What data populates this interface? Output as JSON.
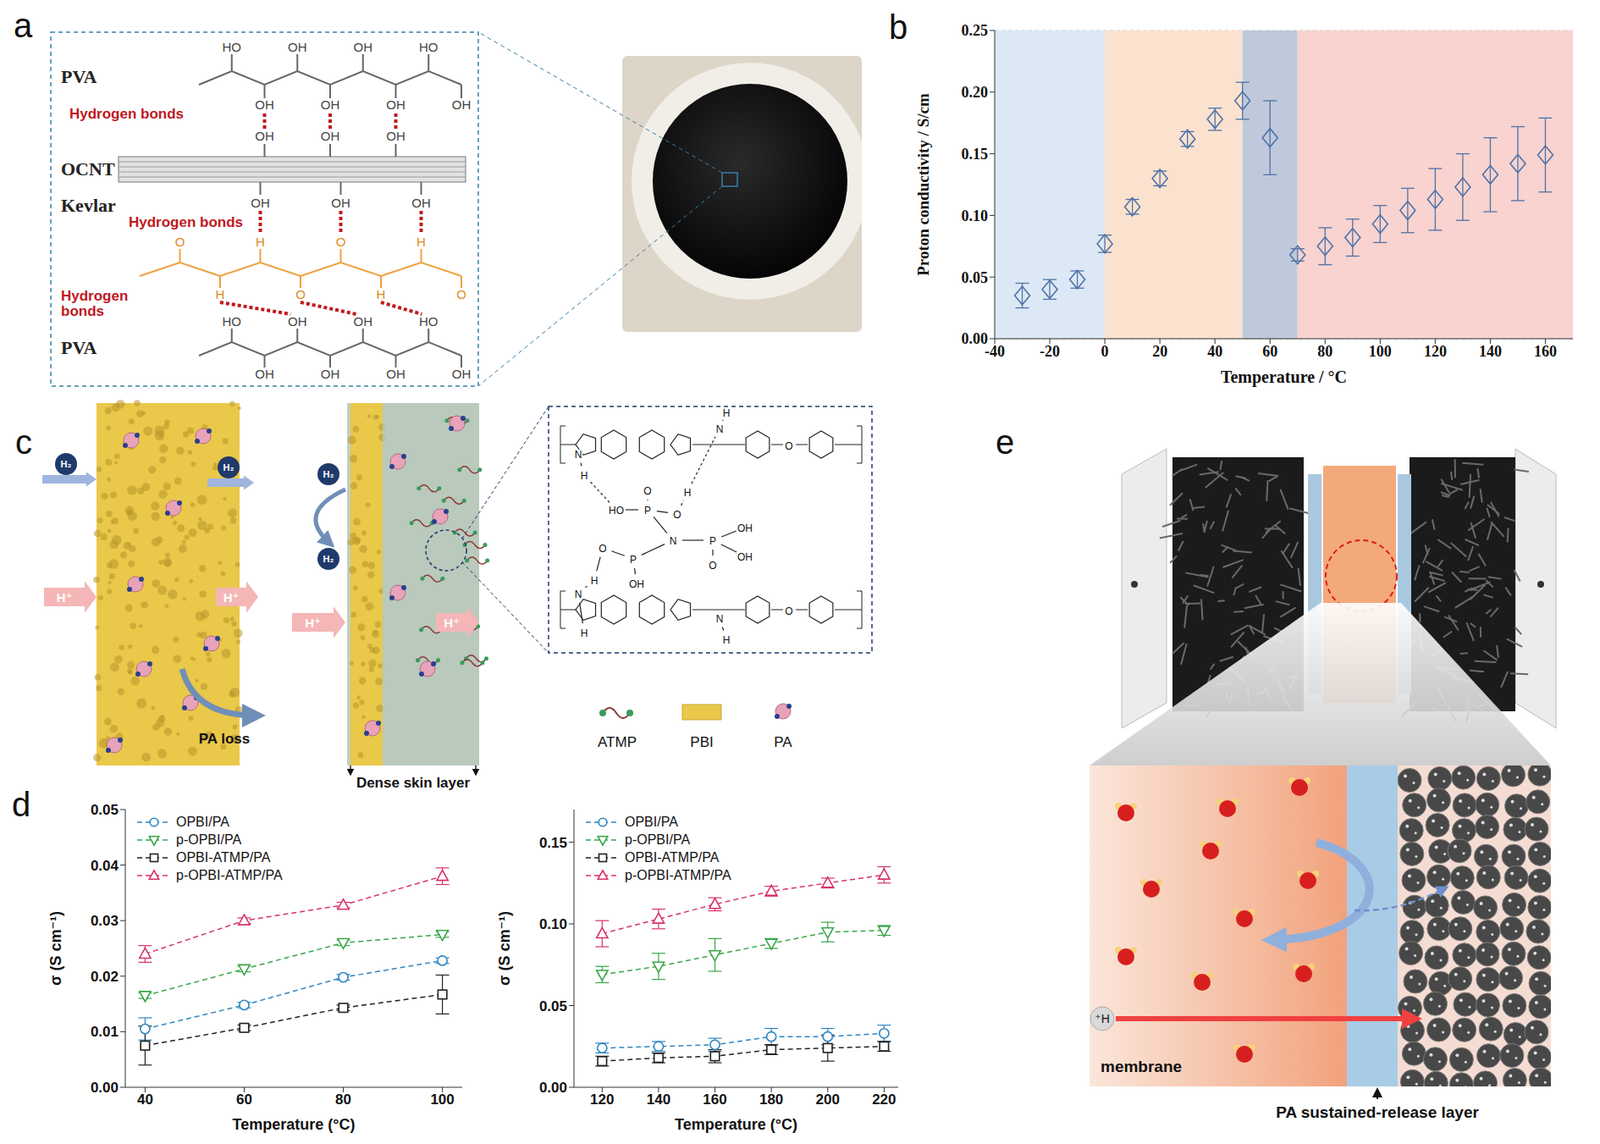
{
  "figure": {
    "panel_letters": [
      "a",
      "b",
      "c",
      "d",
      "e"
    ],
    "a": {
      "labels": {
        "pva_top": "PVA",
        "bonds_1": "Hydrogen bonds",
        "ocnt": "OCNT",
        "kevlar": "Kevlar",
        "bonds_2": "Hydrogen bonds",
        "bonds_3": "Hydrogen bonds",
        "pva_bottom": "PVA"
      },
      "pva_top_up": [
        "HO",
        "OH",
        "OH",
        "HO"
      ],
      "pva_top_down": [
        "OH",
        "OH",
        "OH",
        "OH"
      ],
      "ocnt_up": [
        "OH",
        "OH",
        "OH"
      ],
      "ocnt_down": [
        "OH",
        "OH",
        "OH"
      ],
      "kevlar_up": [
        "O",
        "H",
        "O",
        "H"
      ],
      "kevlar_down": [
        "H",
        "O",
        "H",
        "O"
      ],
      "pva_bottom_up": [
        "HO",
        "OH",
        "OH",
        "HO"
      ],
      "pva_bottom_down": [
        "OH",
        "OH",
        "OH",
        "OH"
      ]
    },
    "c": {
      "h2": "H₂",
      "proton": "H⁺",
      "pa_loss": "PA loss",
      "skin": "Dense skin layer",
      "legend": [
        "ATMP",
        "PBI",
        "PA"
      ],
      "structure_labels": [
        "N",
        "H",
        "N",
        "H",
        "O",
        "HO",
        "P",
        "O",
        "O",
        "H",
        "N",
        "P",
        "O",
        "OH",
        "H",
        "P",
        "OH",
        "O",
        "OH",
        "N",
        "H",
        "N",
        "H",
        "O"
      ]
    },
    "e": {
      "proton": "⁺H",
      "membrane": "membrane",
      "layer": "PA sustained-release layer"
    }
  },
  "chart_data": [
    {
      "type": "scatter",
      "x_label": "Temperature / °C",
      "y_label": "Proton conductivity / S/cm",
      "x": [
        -30,
        -20,
        -10,
        0,
        10,
        20,
        30,
        40,
        50,
        60,
        70,
        80,
        90,
        100,
        110,
        120,
        130,
        140,
        150,
        160
      ],
      "values": [
        0.035,
        0.04,
        0.048,
        0.077,
        0.107,
        0.13,
        0.162,
        0.178,
        0.193,
        0.163,
        0.068,
        0.075,
        0.082,
        0.093,
        0.104,
        0.113,
        0.123,
        0.133,
        0.142,
        0.149
      ],
      "errors": [
        0.01,
        0.008,
        0.007,
        0.007,
        0.006,
        0.006,
        0.006,
        0.009,
        0.015,
        0.03,
        0.005,
        0.015,
        0.015,
        0.015,
        0.018,
        0.025,
        0.027,
        0.03,
        0.03,
        0.03
      ],
      "color": "#4f72a8",
      "marker": "diamond",
      "xlim": [
        -40,
        170
      ],
      "xticks": [
        -40,
        -20,
        0,
        20,
        40,
        60,
        80,
        100,
        120,
        140,
        160
      ],
      "ylim": [
        0,
        0.25
      ],
      "yticks": [
        {
          "value": 0,
          "label": "0.00"
        },
        {
          "value": 0.05,
          "label": "0.05"
        },
        {
          "value": 0.1,
          "label": "0.10"
        },
        {
          "value": 0.15,
          "label": "0.15"
        },
        {
          "value": 0.2,
          "label": "0.20"
        },
        {
          "value": 0.25,
          "label": "0.25"
        }
      ],
      "grid": true,
      "shaded_regions": [
        {
          "x1": -40,
          "x2": 0,
          "color": "#dce8f5"
        },
        {
          "x1": 0,
          "x2": 50,
          "color": "#fbe2cf"
        },
        {
          "x1": 50,
          "x2": 70,
          "color": "#bfc9db"
        },
        {
          "x1": 70,
          "x2": 170,
          "color": "#f8d3cf"
        }
      ]
    },
    {
      "type": "line",
      "x_label": "Temperature (°C)",
      "y_label": "σ (S cm⁻¹)",
      "x": [
        40,
        60,
        80,
        100
      ],
      "series": [
        {
          "name": "OPBI/PA",
          "color": "#2e86c1",
          "marker": "circle",
          "line_style": "dashed",
          "values": [
            0.0105,
            0.0148,
            0.0198,
            0.0228
          ],
          "errors": [
            0.002,
            0.0005,
            0.0005,
            0.0005
          ]
        },
        {
          "name": "p-OPBI/PA",
          "color": "#3aa64a",
          "marker": "triangle-down",
          "line_style": "dashed",
          "values": [
            0.0165,
            0.0213,
            0.026,
            0.0275
          ],
          "errors": [
            0.0005,
            0.0005,
            0.0005,
            0.0005
          ]
        },
        {
          "name": "OPBI-ATMP/PA",
          "color": "#222222",
          "marker": "square",
          "line_style": "dashed",
          "values": [
            0.0075,
            0.0107,
            0.0143,
            0.0167
          ],
          "errors": [
            0.0035,
            0.0005,
            0.0005,
            0.0035
          ]
        },
        {
          "name": "p-OPBI-ATMP/PA",
          "color": "#d6336c",
          "marker": "triangle",
          "line_style": "dashed",
          "values": [
            0.024,
            0.03,
            0.0328,
            0.038
          ],
          "errors": [
            0.0015,
            0.0005,
            0.0005,
            0.0015
          ]
        }
      ],
      "xlim": [
        36,
        104
      ],
      "xticks": [
        40,
        60,
        80,
        100
      ],
      "ylim": [
        0,
        0.05
      ],
      "yticks": [
        {
          "value": 0,
          "label": "0.00"
        },
        {
          "value": 0.01,
          "label": "0.01"
        },
        {
          "value": 0.02,
          "label": "0.02"
        },
        {
          "value": 0.03,
          "label": "0.03"
        },
        {
          "value": 0.04,
          "label": "0.04"
        },
        {
          "value": 0.05,
          "label": "0.05"
        }
      ],
      "legend": "upper left"
    },
    {
      "type": "line",
      "x_label": "Temperature (°C)",
      "y_label": "σ (S cm⁻¹)",
      "x": [
        120,
        140,
        160,
        180,
        200,
        220
      ],
      "series": [
        {
          "name": "OPBI/PA",
          "color": "#2e86c1",
          "marker": "circle",
          "line_style": "dashed",
          "values": [
            0.024,
            0.025,
            0.026,
            0.031,
            0.031,
            0.033
          ],
          "errors": [
            0.003,
            0.003,
            0.004,
            0.005,
            0.005,
            0.005
          ]
        },
        {
          "name": "p-OPBI/PA",
          "color": "#3aa64a",
          "marker": "triangle-down",
          "line_style": "dashed",
          "values": [
            0.069,
            0.074,
            0.081,
            0.088,
            0.095,
            0.096
          ],
          "errors": [
            0.005,
            0.008,
            0.01,
            0.003,
            0.006,
            0.003
          ]
        },
        {
          "name": "OPBI-ATMP/PA",
          "color": "#222222",
          "marker": "square",
          "line_style": "dashed",
          "values": [
            0.016,
            0.018,
            0.019,
            0.023,
            0.024,
            0.025
          ],
          "errors": [
            0.003,
            0.003,
            0.004,
            0.003,
            0.008,
            0.003
          ]
        },
        {
          "name": "p-OPBI-ATMP/PA",
          "color": "#d6336c",
          "marker": "triangle",
          "line_style": "dashed",
          "values": [
            0.094,
            0.103,
            0.112,
            0.12,
            0.125,
            0.13
          ],
          "errors": [
            0.008,
            0.006,
            0.004,
            0.003,
            0.003,
            0.005
          ]
        }
      ],
      "xlim": [
        110,
        225
      ],
      "xticks": [
        120,
        140,
        160,
        180,
        200,
        220
      ],
      "ylim": [
        0,
        0.17
      ],
      "yticks": [
        {
          "value": 0,
          "label": "0.00"
        },
        {
          "value": 0.05,
          "label": "0.05"
        },
        {
          "value": 0.1,
          "label": "0.10"
        },
        {
          "value": 0.15,
          "label": "0.15"
        }
      ],
      "legend": "upper left"
    }
  ]
}
